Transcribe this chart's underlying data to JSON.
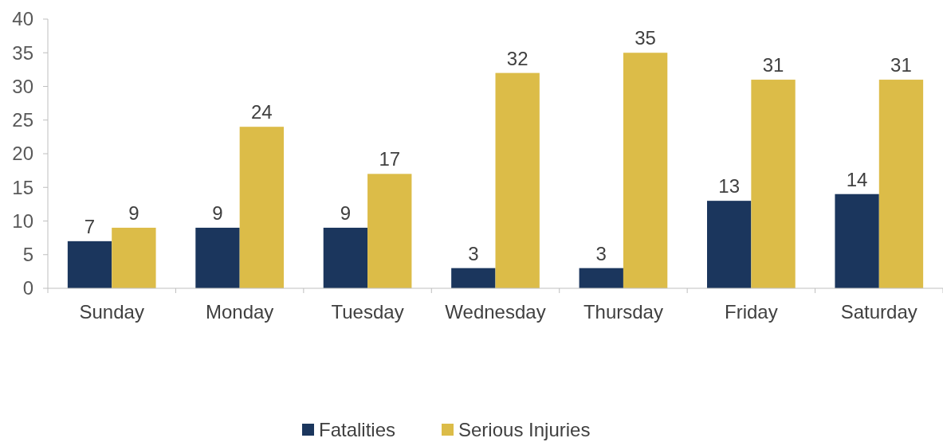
{
  "chart_data": {
    "type": "bar",
    "categories": [
      "Sunday",
      "Monday",
      "Tuesday",
      "Wednesday",
      "Thursday",
      "Friday",
      "Saturday"
    ],
    "series": [
      {
        "name": "Fatalities",
        "color": "#1b365d",
        "values": [
          7,
          9,
          9,
          3,
          3,
          13,
          14
        ]
      },
      {
        "name": "Serious Injuries",
        "color": "#dcbc48",
        "values": [
          9,
          24,
          17,
          32,
          35,
          31,
          31
        ]
      }
    ],
    "ylim": [
      0,
      40
    ],
    "yticks": [
      0,
      5,
      10,
      15,
      20,
      25,
      30,
      35,
      40
    ],
    "data_labels": true,
    "legend": "bottom",
    "grid": false
  }
}
